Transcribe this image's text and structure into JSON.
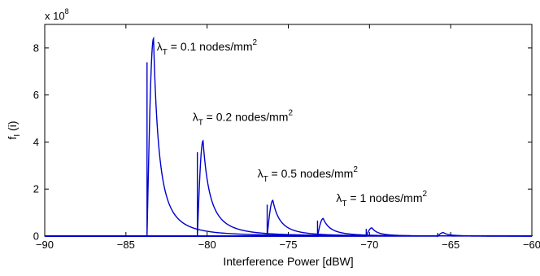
{
  "chart_data": {
    "type": "line",
    "xlabel": "Interference Power [dBW]",
    "ylabel": "f",
    "ylabel_sub": "I",
    "ylabel_suffix": " (i)",
    "y_multiplier": "x 10",
    "y_multiplier_exp": "8",
    "xlim": [
      -90,
      -60
    ],
    "ylim": [
      0,
      9
    ],
    "x_ticks": [
      -90,
      -85,
      -80,
      -75,
      -70,
      -65,
      -60
    ],
    "x_tick_labels": [
      "−90",
      "−85",
      "−80",
      "−75",
      "−70",
      "−65",
      "−60"
    ],
    "y_ticks": [
      0,
      2,
      4,
      6,
      8
    ],
    "y_tick_labels": [
      "0",
      "2",
      "4",
      "6",
      "8"
    ],
    "grid": false,
    "line_color": "#0000cc",
    "series": [
      {
        "onset": -83.7,
        "peak_x": -83.3,
        "peak_y": 8.4,
        "decay": 0.75
      },
      {
        "onset": -80.6,
        "peak_x": -80.25,
        "peak_y": 4.05,
        "decay": 0.95
      },
      {
        "onset": -76.3,
        "peak_x": -75.95,
        "peak_y": 1.52,
        "decay": 1.0
      },
      {
        "onset": -73.2,
        "peak_x": -72.85,
        "peak_y": 0.75,
        "decay": 1.0
      },
      {
        "onset": -70.2,
        "peak_x": -69.85,
        "peak_y": 0.35,
        "decay": 0.8
      },
      {
        "onset": -65.8,
        "peak_x": -65.45,
        "peak_y": 0.15,
        "decay": 0.7
      }
    ],
    "annotations": [
      {
        "lambda": "λ",
        "sub": "T",
        "text": " = 0.1 nodes/mm",
        "sup": "2",
        "anchor_x": -83.1,
        "anchor_y": 7.9
      },
      {
        "lambda": "λ",
        "sub": "T",
        "text": " = 0.2 nodes/mm",
        "sup": "2",
        "anchor_x": -80.9,
        "anchor_y": 4.9
      },
      {
        "lambda": "λ",
        "sub": "T",
        "text": " = 0.5 nodes/mm",
        "sup": "2",
        "anchor_x": -76.9,
        "anchor_y": 2.5
      },
      {
        "lambda": "λ",
        "sub": "T",
        "text": " = 1 nodes/mm",
        "sup": "2",
        "anchor_x": -72.05,
        "anchor_y": 1.45
      }
    ]
  }
}
